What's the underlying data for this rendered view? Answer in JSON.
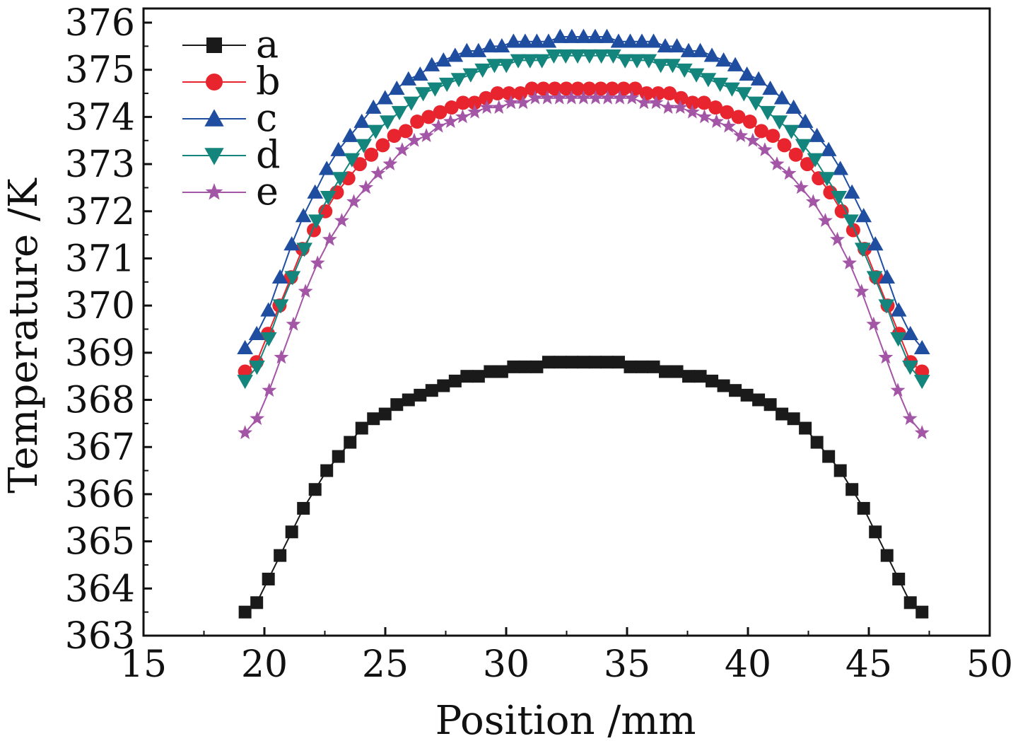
{
  "chart_data": {
    "type": "line",
    "xlabel": "Position /mm",
    "ylabel": "Temperature /K",
    "xlim": [
      15,
      50
    ],
    "ylim": [
      363,
      376.3
    ],
    "xticks": [
      "15",
      "20",
      "25",
      "30",
      "35",
      "40",
      "45",
      "50"
    ],
    "yticks": [
      "363",
      "364",
      "365",
      "366",
      "367",
      "368",
      "369",
      "370",
      "371",
      "372",
      "373",
      "374",
      "375",
      "376"
    ],
    "legend_position": "top-left",
    "grid": false,
    "x_start": 19.2,
    "x_step": 0.5,
    "series": [
      {
        "name": "a",
        "color": "#1a1a1a",
        "marker": "square",
        "values": [
          363.5,
          363.7,
          364.2,
          364.7,
          365.2,
          365.7,
          366.1,
          366.5,
          366.8,
          367.1,
          367.4,
          367.6,
          367.7,
          367.9,
          368.0,
          368.1,
          368.2,
          368.3,
          368.4,
          368.5,
          368.5,
          368.6,
          368.6,
          368.7,
          368.7,
          368.7,
          368.8,
          368.8,
          368.8,
          368.8,
          368.8,
          368.8,
          368.8,
          368.7,
          368.7,
          368.7,
          368.6,
          368.6,
          368.5,
          368.5,
          368.4,
          368.3,
          368.2,
          368.1,
          368.0,
          367.9,
          367.7,
          367.6,
          367.4,
          367.1,
          366.8,
          366.5,
          366.1,
          365.7,
          365.2,
          364.7,
          364.2,
          363.7,
          363.5
        ]
      },
      {
        "name": "b",
        "color": "#e8252e",
        "marker": "circle",
        "values": [
          368.6,
          368.8,
          369.4,
          370.0,
          370.6,
          371.2,
          371.6,
          372.0,
          372.4,
          372.7,
          373.0,
          373.2,
          373.4,
          373.6,
          373.7,
          373.9,
          374.0,
          374.1,
          374.2,
          374.3,
          374.3,
          374.4,
          374.5,
          374.5,
          374.5,
          374.6,
          374.6,
          374.6,
          374.6,
          374.6,
          374.6,
          374.6,
          374.6,
          374.6,
          374.6,
          374.5,
          374.5,
          374.5,
          374.4,
          374.3,
          374.3,
          374.2,
          374.1,
          374.0,
          373.9,
          373.7,
          373.6,
          373.4,
          373.2,
          373.0,
          372.7,
          372.4,
          372.0,
          371.6,
          371.2,
          370.6,
          370.0,
          369.4,
          368.8,
          368.6
        ]
      },
      {
        "name": "c",
        "color": "#1f4ea1",
        "marker": "triangle-up",
        "values": [
          369.1,
          369.4,
          369.9,
          370.6,
          371.3,
          371.9,
          372.4,
          372.9,
          373.3,
          373.6,
          373.9,
          374.2,
          374.4,
          374.6,
          374.8,
          374.9,
          375.1,
          375.2,
          375.3,
          375.4,
          375.4,
          375.5,
          375.5,
          375.6,
          375.6,
          375.6,
          375.6,
          375.7,
          375.7,
          375.7,
          375.7,
          375.7,
          375.6,
          375.6,
          375.6,
          375.6,
          375.5,
          375.5,
          375.4,
          375.4,
          375.3,
          375.2,
          375.1,
          374.9,
          374.8,
          374.6,
          374.4,
          374.2,
          373.9,
          373.6,
          373.3,
          372.9,
          372.4,
          371.9,
          371.3,
          370.6,
          369.9,
          369.4,
          369.1
        ]
      },
      {
        "name": "d",
        "color": "#14857c",
        "marker": "triangle-down",
        "values": [
          368.4,
          368.7,
          369.3,
          370.0,
          370.6,
          371.2,
          371.8,
          372.3,
          372.7,
          373.1,
          373.4,
          373.7,
          373.9,
          374.1,
          374.3,
          374.5,
          374.6,
          374.7,
          374.8,
          374.9,
          375.0,
          375.1,
          375.1,
          375.2,
          375.2,
          375.2,
          375.3,
          375.3,
          375.3,
          375.3,
          375.3,
          375.3,
          375.2,
          375.2,
          375.2,
          375.1,
          375.1,
          375.0,
          374.9,
          374.8,
          374.7,
          374.6,
          374.5,
          374.3,
          374.1,
          373.9,
          373.7,
          373.4,
          373.1,
          372.7,
          372.3,
          371.8,
          371.2,
          370.6,
          370.0,
          369.3,
          368.7,
          368.4
        ]
      },
      {
        "name": "e",
        "color": "#a355a6",
        "marker": "star",
        "values": [
          367.3,
          367.6,
          368.2,
          368.9,
          369.6,
          370.3,
          370.9,
          371.4,
          371.8,
          372.2,
          372.5,
          372.8,
          373.0,
          373.3,
          373.5,
          373.6,
          373.8,
          373.9,
          374.0,
          374.1,
          374.2,
          374.2,
          374.3,
          374.3,
          374.4,
          374.4,
          374.4,
          374.4,
          374.4,
          374.4,
          374.4,
          374.4,
          374.4,
          374.3,
          374.3,
          374.2,
          374.2,
          374.1,
          374.0,
          373.9,
          373.8,
          373.6,
          373.5,
          373.3,
          373.0,
          372.8,
          372.5,
          372.2,
          371.8,
          371.4,
          370.9,
          370.3,
          369.6,
          368.9,
          368.2,
          367.6,
          367.3
        ]
      }
    ]
  }
}
